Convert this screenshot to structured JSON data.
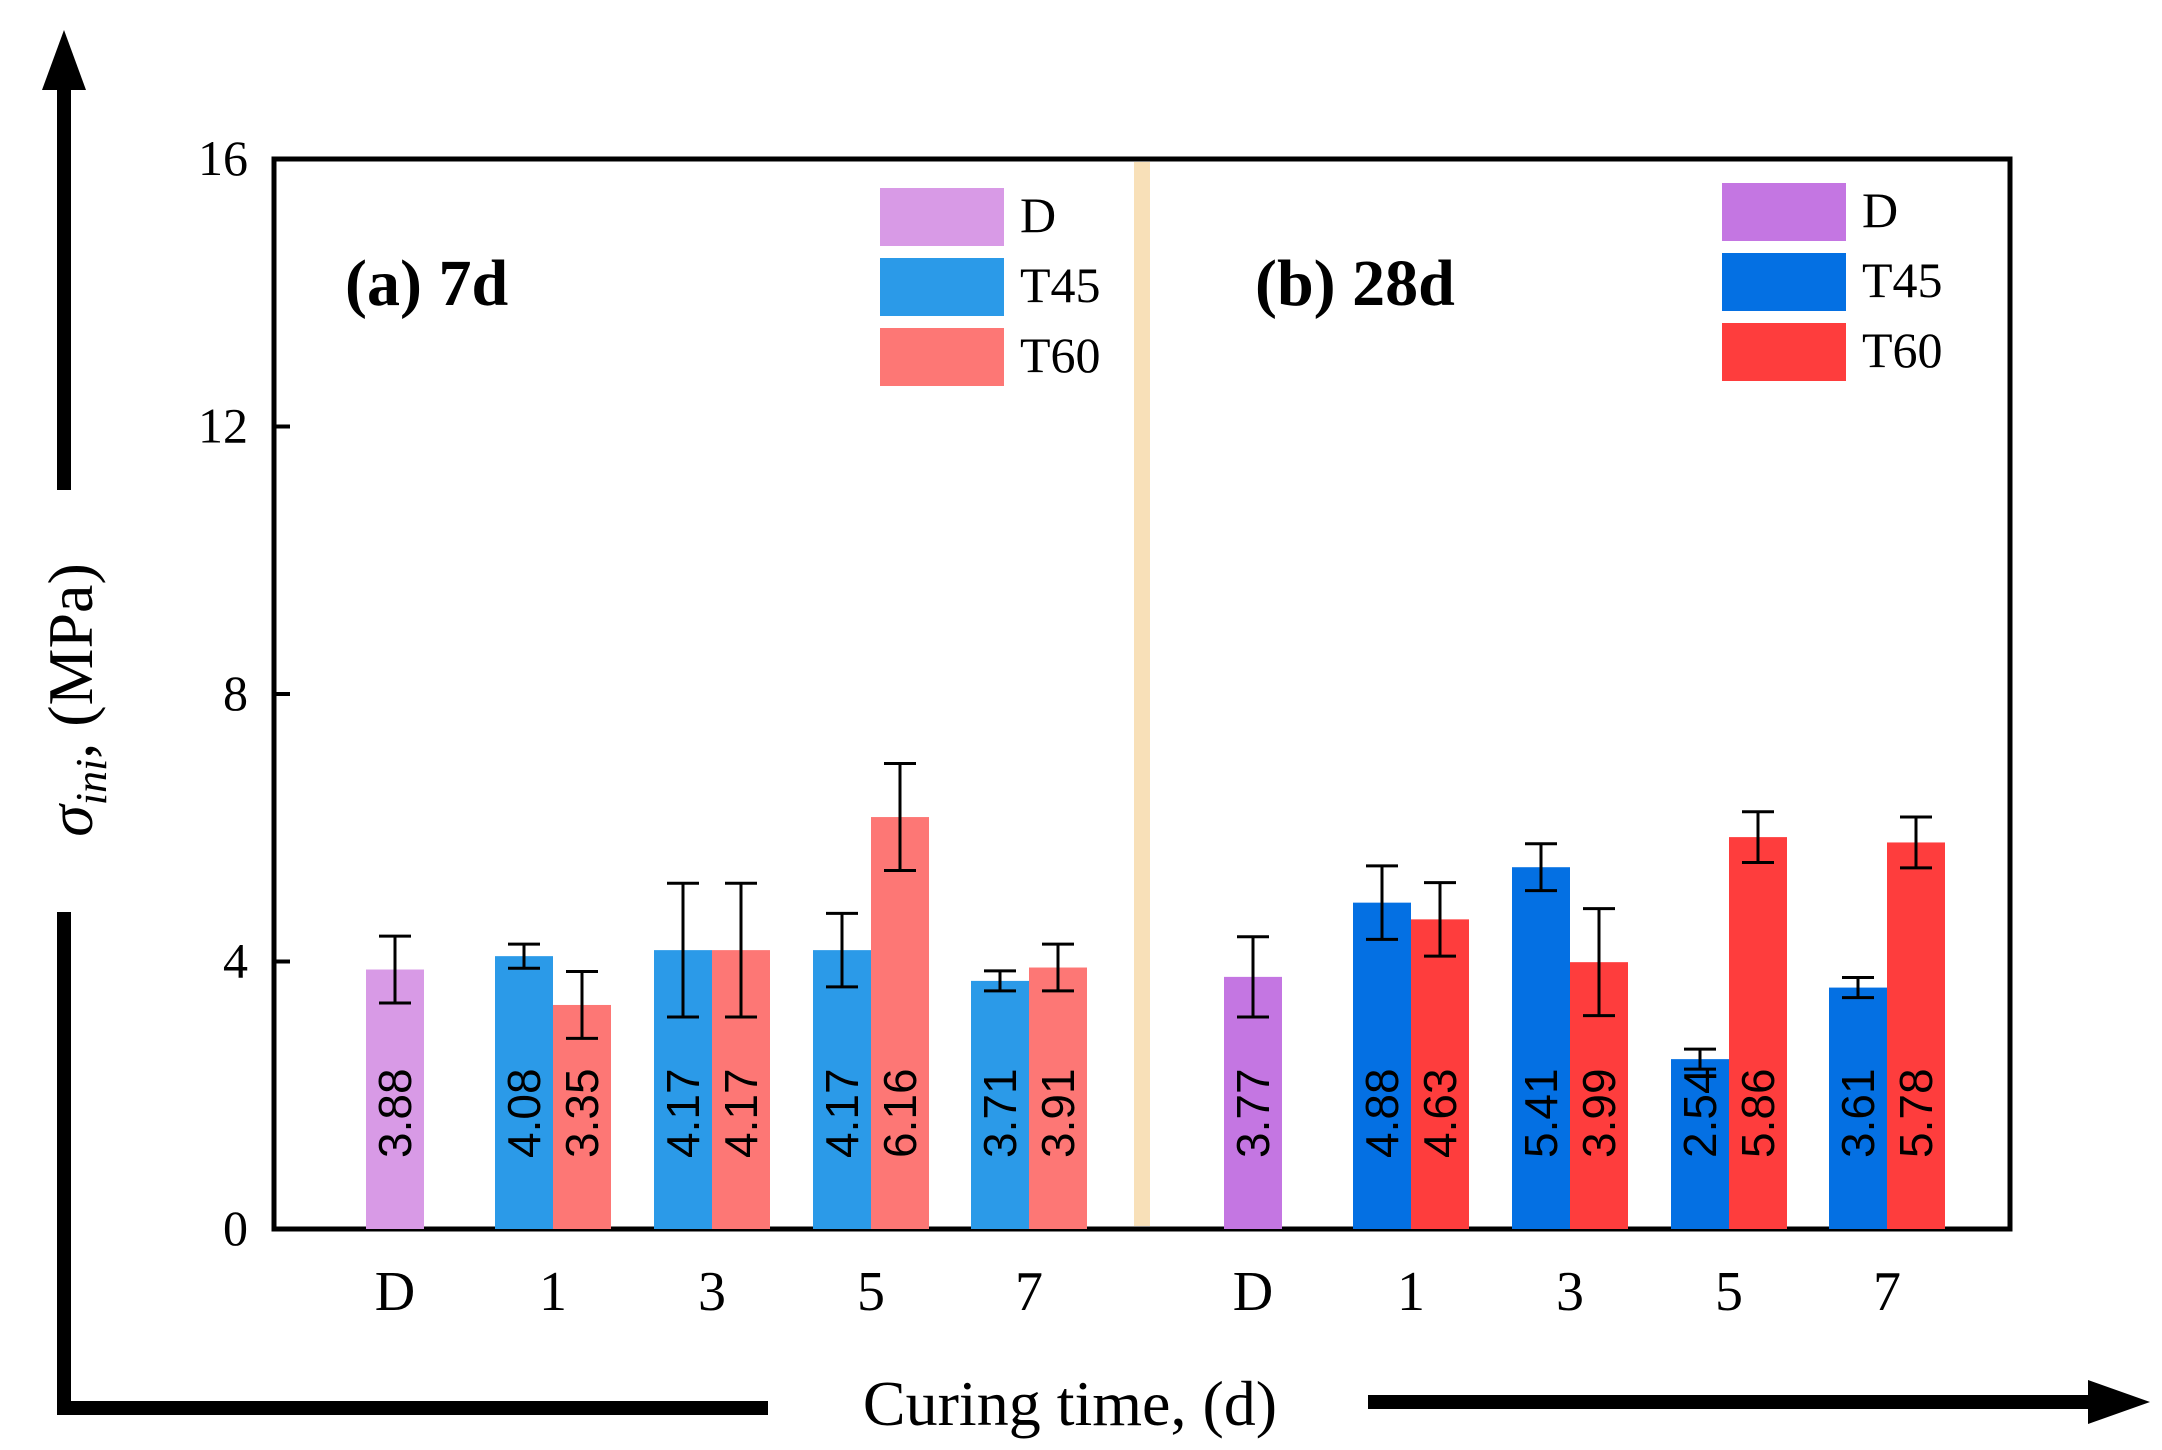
{
  "chart_data": {
    "type": "bar",
    "ylim": [
      0,
      16
    ],
    "yticks": [
      "0",
      "4",
      "8",
      "12",
      "16"
    ],
    "xlabel": "Curing time, (d)",
    "ylabel": "σ ini, (MPa)",
    "ylabel_symbol": "σ",
    "ylabel_sub": "ini",
    "ylabel_tail": ", (MPa)",
    "panels": [
      {
        "title": "(a) 7d",
        "categories": [
          "D",
          "1",
          "3",
          "5",
          "7"
        ],
        "colors": {
          "D": "#d89ae6",
          "T45": "#2b9ae8",
          "T60": "#fd7775"
        },
        "legend": [
          "D",
          "T45",
          "T60"
        ],
        "bars": [
          {
            "category": "D",
            "series": "D",
            "value": 3.88,
            "error": 0.5,
            "label": "3.88"
          },
          {
            "category": "1",
            "series": "T45",
            "value": 4.08,
            "error": 0.18,
            "label": "4.08"
          },
          {
            "category": "1",
            "series": "T60",
            "value": 3.35,
            "error": 0.5,
            "label": "3.35"
          },
          {
            "category": "3",
            "series": "T45",
            "value": 4.17,
            "error": 1.0,
            "label": "4.17"
          },
          {
            "category": "3",
            "series": "T60",
            "value": 4.17,
            "error": 1.0,
            "label": "4.17"
          },
          {
            "category": "5",
            "series": "T45",
            "value": 4.17,
            "error": 0.55,
            "label": "4.17"
          },
          {
            "category": "5",
            "series": "T60",
            "value": 6.16,
            "error": 0.8,
            "label": "6.16"
          },
          {
            "category": "7",
            "series": "T45",
            "value": 3.71,
            "error": 0.15,
            "label": "3.71"
          },
          {
            "category": "7",
            "series": "T60",
            "value": 3.91,
            "error": 0.35,
            "label": "3.91"
          }
        ]
      },
      {
        "title": "(b) 28d",
        "categories": [
          "D",
          "1",
          "3",
          "5",
          "7"
        ],
        "colors": {
          "D": "#c476e2",
          "T45": "#0470e3",
          "T60": "#fe3d3d"
        },
        "legend": [
          "D",
          "T45",
          "T60"
        ],
        "bars": [
          {
            "category": "D",
            "series": "D",
            "value": 3.77,
            "error": 0.6,
            "label": "3.77"
          },
          {
            "category": "1",
            "series": "T45",
            "value": 4.88,
            "error": 0.55,
            "label": "4.88"
          },
          {
            "category": "1",
            "series": "T60",
            "value": 4.63,
            "error": 0.55,
            "label": "4.63"
          },
          {
            "category": "3",
            "series": "T45",
            "value": 5.41,
            "error": 0.35,
            "label": "5.41"
          },
          {
            "category": "3",
            "series": "T60",
            "value": 3.99,
            "error": 0.8,
            "label": "3.99"
          },
          {
            "category": "5",
            "series": "T45",
            "value": 2.54,
            "error": 0.15,
            "label": "2.54"
          },
          {
            "category": "5",
            "series": "T60",
            "value": 5.86,
            "error": 0.38,
            "label": "5.86"
          },
          {
            "category": "7",
            "series": "T45",
            "value": 3.61,
            "error": 0.15,
            "label": "3.61"
          },
          {
            "category": "7",
            "series": "T60",
            "value": 5.78,
            "error": 0.38,
            "label": "5.78"
          }
        ]
      }
    ],
    "divider_color": "#f8e0b8"
  }
}
